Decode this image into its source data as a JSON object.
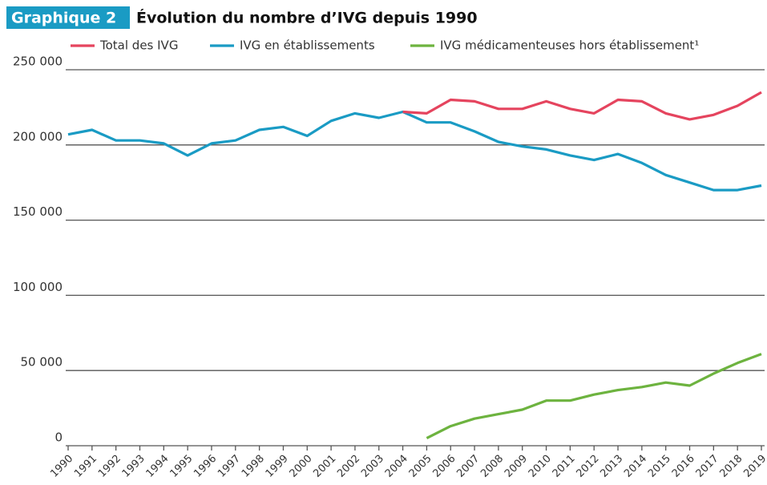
{
  "chart_data": {
    "type": "line",
    "badge": "Graphique 2",
    "title": "Évolution du nombre d’IVG depuis 1990",
    "categories": [
      "1990",
      "1991",
      "1992",
      "1993",
      "1994",
      "1995",
      "1996",
      "1997",
      "1998",
      "1999",
      "2000",
      "2001",
      "2002",
      "2003",
      "2004",
      "2005",
      "2006",
      "2007",
      "2008",
      "2009",
      "2010",
      "2011",
      "2012",
      "2013",
      "2014",
      "2015",
      "2016",
      "2017",
      "2018",
      "2019"
    ],
    "series": [
      {
        "name": "Total des IVG",
        "color": "#e5445e",
        "values": [
          null,
          null,
          null,
          null,
          null,
          null,
          null,
          null,
          null,
          null,
          null,
          null,
          null,
          null,
          222000,
          221000,
          230000,
          229000,
          224000,
          224000,
          229000,
          224000,
          221000,
          230000,
          229000,
          221000,
          217000,
          220000,
          226000,
          235000
        ]
      },
      {
        "name": "IVG en établissements",
        "color": "#1a9bc4",
        "values": [
          207000,
          210000,
          203000,
          203000,
          201000,
          193000,
          201000,
          203000,
          210000,
          212000,
          206000,
          216000,
          221000,
          218000,
          222000,
          215000,
          215000,
          209000,
          202000,
          199000,
          197000,
          193000,
          190000,
          194000,
          188000,
          180000,
          175000,
          170000,
          170000,
          173000
        ]
      },
      {
        "name": "IVG médicamenteuses hors établissement¹",
        "color": "#6db33f",
        "values": [
          null,
          null,
          null,
          null,
          null,
          null,
          null,
          null,
          null,
          null,
          null,
          null,
          null,
          null,
          null,
          5000,
          13000,
          18000,
          21000,
          24000,
          30000,
          30000,
          34000,
          37000,
          39000,
          42000,
          40000,
          48000,
          55000,
          61000
        ]
      }
    ],
    "ylim": [
      0,
      250000
    ],
    "yticks": [
      0,
      {
        "value": 50000,
        "label": "50 000"
      },
      {
        "value": 100000,
        "label": "100 000"
      },
      {
        "value": 150000,
        "label": "150 000"
      },
      {
        "value": 200000,
        "label": "200 000"
      },
      {
        "value": 250000,
        "label": "250 000"
      }
    ],
    "grid": true
  }
}
